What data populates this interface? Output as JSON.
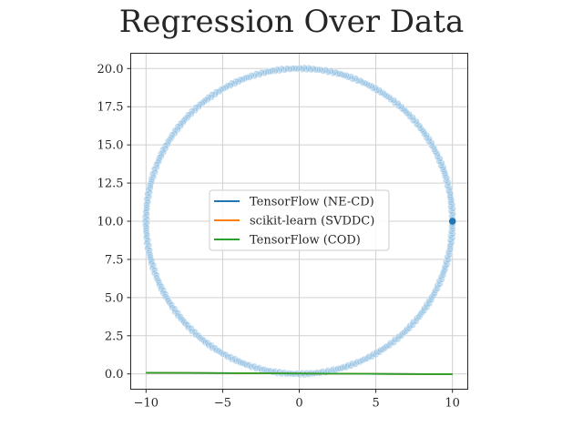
{
  "chart_data": {
    "type": "scatter",
    "title": "Regression Over Data",
    "xlabel": "",
    "ylabel": "",
    "xlim": [
      -11,
      11
    ],
    "ylim": [
      -1,
      21
    ],
    "grid": true,
    "legend_position": "center",
    "x_ticks": [
      -10,
      -5,
      0,
      5,
      10
    ],
    "x_tick_labels": [
      "−10",
      "−5",
      "0",
      "5",
      "10"
    ],
    "y_ticks": [
      0,
      2.5,
      5,
      7.5,
      10,
      12.5,
      15,
      17.5,
      20
    ],
    "y_tick_labels": [
      "0.0",
      "2.5",
      "5.0",
      "7.5",
      "10.0",
      "12.5",
      "15.0",
      "17.5",
      "20.0"
    ],
    "scatter": {
      "description": "points on a circle of radius 10 centered at (0, 10)",
      "center": [
        0,
        10
      ],
      "radius": 10,
      "point_count": 400,
      "color": "#8fbfe2",
      "highlight_point": [
        10,
        10
      ],
      "highlight_color": "#1f77b4"
    },
    "series": [
      {
        "name": "TensorFlow (NE-CD)",
        "color": "#1f77b4",
        "x": [
          -10,
          10
        ],
        "y": [
          0.08,
          -0.02
        ]
      },
      {
        "name": "scikit-learn (SVDDC)",
        "color": "#ff7f0e",
        "x": [
          -10,
          10
        ],
        "y": [
          0.08,
          -0.02
        ]
      },
      {
        "name": "TensorFlow (COD)",
        "color": "#2ca02c",
        "x": [
          -10,
          10
        ],
        "y": [
          0.08,
          -0.02
        ]
      }
    ]
  }
}
